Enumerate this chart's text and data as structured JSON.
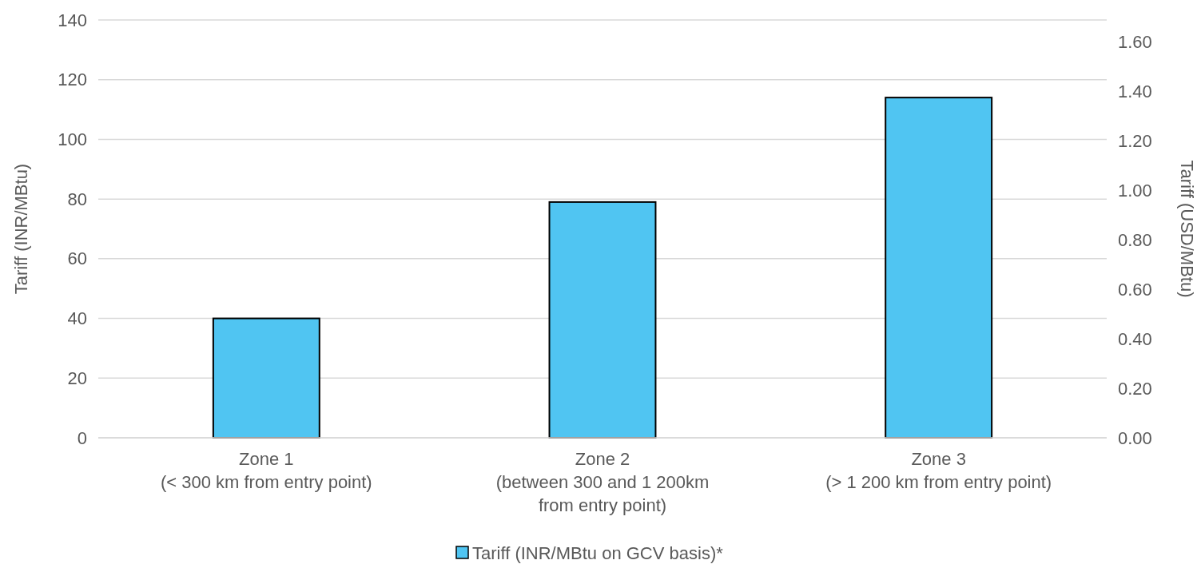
{
  "chart_data": {
    "type": "bar",
    "ylabel": "Tariff (INR/MBtu)",
    "y2label": "Tariff (USD/MBtu)",
    "categories": [
      "Zone 1\n(< 300 km from entry point)",
      "Zone 2\n(between 300 and 1 200km\nfrom entry point)",
      "Zone 3\n(> 1 200 km from entry point)"
    ],
    "series": [
      {
        "name": "Tariff (INR/MBtu on GCV basis)*",
        "color": "#50c5f2",
        "values": [
          40,
          79,
          114
        ]
      }
    ],
    "ylim": [
      0,
      140
    ],
    "yticks": [
      0,
      20,
      40,
      60,
      80,
      100,
      120,
      140
    ],
    "y2lim": [
      0,
      1.69
    ],
    "y2ticks": [
      {
        "value": 0,
        "label": "0.00"
      },
      {
        "value": 0.2,
        "label": "0.20"
      },
      {
        "value": 0.4,
        "label": "0.40"
      },
      {
        "value": 0.6,
        "label": "0.60"
      },
      {
        "value": 0.8,
        "label": "0.80"
      },
      {
        "value": 1,
        "label": "1.00"
      },
      {
        "value": 1.2,
        "label": "1.20"
      },
      {
        "value": 1.4,
        "label": "1.40"
      },
      {
        "value": 1.6,
        "label": "1.60"
      }
    ],
    "grid": "y",
    "legend": "bottom"
  }
}
